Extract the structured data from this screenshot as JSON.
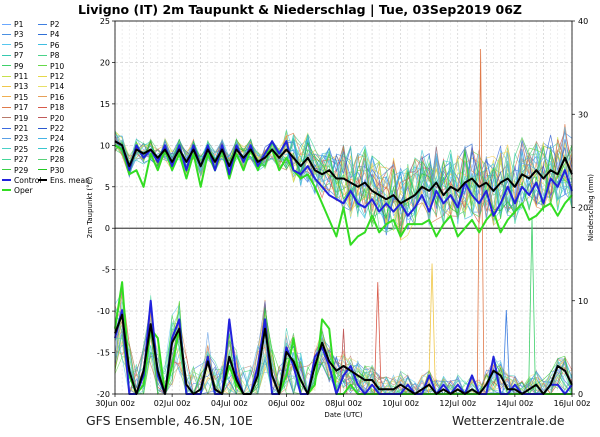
{
  "header": {
    "title": "Livigno  (IT)  2m Taupunkt & Niederschlag | Tue, 03Sep2019 06Z"
  },
  "footer": {
    "left": "GFS Ensemble, 46.5N, 10E",
    "right": "Wetterzentrale.de"
  },
  "legend": {
    "items": [
      {
        "label": "P1",
        "color": "#6aa8ff"
      },
      {
        "label": "P2",
        "color": "#3f7fe0"
      },
      {
        "label": "P3",
        "color": "#4a90e2"
      },
      {
        "label": "P4",
        "color": "#2f6fd6"
      },
      {
        "label": "P5",
        "color": "#57c7f0"
      },
      {
        "label": "P6",
        "color": "#3fbde0"
      },
      {
        "label": "P7",
        "color": "#36c9b0"
      },
      {
        "label": "P8",
        "color": "#4bd38a"
      },
      {
        "label": "P9",
        "color": "#3ed06a"
      },
      {
        "label": "P10",
        "color": "#66d94a"
      },
      {
        "label": "P11",
        "color": "#c8e04a"
      },
      {
        "label": "P12",
        "color": "#e6d84a"
      },
      {
        "label": "P13",
        "color": "#f0c84a"
      },
      {
        "label": "P14",
        "color": "#e8e06a"
      },
      {
        "label": "P15",
        "color": "#f0b050"
      },
      {
        "label": "P16",
        "color": "#e6a05a"
      },
      {
        "label": "P17",
        "color": "#e07a4a"
      },
      {
        "label": "P18",
        "color": "#d85a4a"
      },
      {
        "label": "P19",
        "color": "#b87a6a"
      },
      {
        "label": "P20",
        "color": "#c05a5a"
      },
      {
        "label": "P21",
        "color": "#3a6ae0"
      },
      {
        "label": "P22",
        "color": "#2a5ad0"
      },
      {
        "label": "P23",
        "color": "#5aa0e6"
      },
      {
        "label": "P24",
        "color": "#46b4e6"
      },
      {
        "label": "P25",
        "color": "#4ad0c8"
      },
      {
        "label": "P26",
        "color": "#3ac6d0"
      },
      {
        "label": "P27",
        "color": "#44d69a"
      },
      {
        "label": "P28",
        "color": "#5ad07a"
      },
      {
        "label": "P29",
        "color": "#3ad040"
      },
      {
        "label": "P30",
        "color": "#22c822"
      },
      {
        "label": "Control",
        "color": "#2222dd"
      },
      {
        "label": "Ens. mean",
        "color": "#000000"
      },
      {
        "label": "Oper",
        "color": "#33dd22"
      }
    ]
  },
  "chart_data": {
    "type": "line",
    "title": "Livigno  (IT)  2m Taupunkt & Niederschlag | Tue, 03Sep2019 06Z",
    "xlabel": "Date (UTC)",
    "ylabel": "2m Taupunkt (°C)",
    "y2label": "Niederschlag (mm)",
    "x_ticks": [
      "30Jun 00z",
      "02Jul 00z",
      "04Jul 00z",
      "06Jul 00z",
      "08Jul 00z",
      "10Jul 00z",
      "12Jul 00z",
      "14Jul 00z",
      "16Jul 00z"
    ],
    "x_range_days": [
      0,
      16
    ],
    "ylim": [
      -20,
      25
    ],
    "y_ticks": [
      -20,
      -15,
      -10,
      -5,
      0,
      5,
      10,
      15,
      20,
      25
    ],
    "y2lim": [
      0,
      40
    ],
    "y2_ticks": [
      0,
      10,
      20,
      30,
      40
    ],
    "grid": true,
    "legend_position": "left",
    "series": [
      {
        "name": "Ens. mean",
        "kind": "dewpoint",
        "x": [
          0,
          0.25,
          0.5,
          0.75,
          1,
          1.25,
          1.5,
          1.75,
          2,
          2.25,
          2.5,
          2.75,
          3,
          3.25,
          3.5,
          3.75,
          4,
          4.25,
          4.5,
          4.75,
          5,
          5.25,
          5.5,
          5.75,
          6,
          6.25,
          6.5,
          6.75,
          7,
          7.25,
          7.5,
          7.75,
          8,
          8.25,
          8.5,
          8.75,
          9,
          9.25,
          9.5,
          9.75,
          10,
          10.25,
          10.5,
          10.75,
          11,
          11.25,
          11.5,
          11.75,
          12,
          12.25,
          12.5,
          12.75,
          13,
          13.25,
          13.5,
          13.75,
          14,
          14.25,
          14.5,
          14.75,
          15,
          15.25,
          15.5,
          15.75,
          16
        ],
        "values": [
          10.5,
          10,
          7.5,
          9.5,
          9,
          9.5,
          8.5,
          9.5,
          8,
          9.5,
          8,
          9.5,
          7.5,
          9.5,
          8,
          9.5,
          7.5,
          9.5,
          8.5,
          9.5,
          8,
          8.5,
          9.5,
          8.5,
          9.5,
          8.5,
          7.5,
          8.5,
          7,
          6.5,
          7,
          6,
          6,
          5.5,
          5,
          5.5,
          4.5,
          4,
          3.5,
          4,
          3,
          3.5,
          4,
          5,
          4.5,
          5.5,
          4,
          5,
          4.5,
          5.5,
          6,
          5,
          5.5,
          4.5,
          5.5,
          6,
          5,
          6.5,
          6,
          7,
          6,
          7,
          6.5,
          8.5,
          6.5
        ]
      },
      {
        "name": "Control",
        "kind": "dewpoint",
        "x": [
          0,
          0.25,
          0.5,
          0.75,
          1,
          1.25,
          1.5,
          1.75,
          2,
          2.25,
          2.5,
          2.75,
          3,
          3.25,
          3.5,
          3.75,
          4,
          4.25,
          4.5,
          4.75,
          5,
          5.25,
          5.5,
          5.75,
          6,
          6.25,
          6.5,
          6.75,
          7,
          7.25,
          7.5,
          7.75,
          8,
          8.25,
          8.5,
          8.75,
          9,
          9.25,
          9.5,
          9.75,
          10,
          10.25,
          10.5,
          10.75,
          11,
          11.25,
          11.5,
          11.75,
          12,
          12.25,
          12.5,
          12.75,
          13,
          13.25,
          13.5,
          13.75,
          14,
          14.25,
          14.5,
          14.75,
          15,
          15.25,
          15.5,
          15.75,
          16
        ],
        "values": [
          10.5,
          10,
          7,
          10,
          8.5,
          9.5,
          8,
          10,
          7.5,
          10,
          7,
          10,
          7.5,
          10,
          7,
          10,
          6.5,
          10,
          8,
          10,
          7.5,
          9,
          10.5,
          9,
          10.5,
          7,
          6.5,
          7.5,
          6,
          5,
          4,
          3.5,
          3,
          4.5,
          3,
          2.5,
          3.5,
          2,
          3,
          2,
          3,
          1.5,
          2.5,
          4,
          2,
          4.5,
          3,
          4,
          2.5,
          5.5,
          4,
          3,
          4.5,
          1.5,
          3,
          5,
          3,
          5,
          4,
          5.5,
          3,
          6,
          5,
          7,
          4.5
        ]
      },
      {
        "name": "Oper",
        "kind": "dewpoint",
        "x": [
          0,
          0.25,
          0.5,
          0.75,
          1,
          1.25,
          1.5,
          1.75,
          2,
          2.25,
          2.5,
          2.75,
          3,
          3.25,
          3.5,
          3.75,
          4,
          4.25,
          4.5,
          4.75,
          5,
          5.25,
          5.5,
          5.75,
          6,
          6.25,
          6.5,
          6.75,
          7,
          7.25,
          7.5,
          7.75,
          8,
          8.25,
          8.5,
          8.75,
          9,
          9.25,
          9.5,
          9.75,
          10,
          10.25,
          10.5,
          10.75,
          11,
          11.25,
          11.5,
          11.75,
          12,
          12.25,
          12.5,
          12.75,
          13,
          13.25,
          13.5,
          13.75,
          14,
          14.25,
          14.5,
          14.75,
          15,
          15.25,
          15.5,
          15.75,
          16
        ],
        "values": [
          10,
          9.5,
          6.5,
          7,
          5,
          9,
          7,
          9.5,
          7,
          9,
          6,
          9,
          5,
          9,
          7,
          9.5,
          6,
          9,
          7,
          9.5,
          7,
          9,
          9.5,
          7,
          8.5,
          7,
          6,
          6.5,
          5,
          3,
          1,
          -1,
          2.5,
          -2,
          -1,
          -0.5,
          1.5,
          -0.5,
          0.5,
          1,
          -1,
          0.5,
          0.5,
          0.5,
          1,
          -1,
          0.5,
          1.5,
          -1,
          0,
          1,
          -0.5,
          1,
          2,
          -0.5,
          1,
          2,
          3,
          1,
          1.5,
          2.5,
          3,
          1.5,
          3,
          4
        ]
      },
      {
        "name": "Ens. mean precip",
        "kind": "precip",
        "x": [
          0,
          0.25,
          0.5,
          0.75,
          1,
          1.25,
          1.5,
          1.75,
          2,
          2.25,
          2.5,
          2.75,
          3,
          3.25,
          3.5,
          3.75,
          4,
          4.25,
          4.5,
          4.75,
          5,
          5.25,
          5.5,
          5.75,
          6,
          6.25,
          6.5,
          6.75,
          7,
          7.25,
          7.5,
          7.75,
          8,
          8.25,
          8.5,
          8.75,
          9,
          9.25,
          9.5,
          9.75,
          10,
          10.25,
          10.5,
          10.75,
          11,
          11.25,
          11.5,
          11.75,
          12,
          12.25,
          12.5,
          12.75,
          13,
          13.25,
          13.5,
          13.75,
          14,
          14.25,
          14.5,
          14.75,
          15,
          15.25,
          15.5,
          15.75,
          16
        ],
        "values": [
          6.5,
          8.5,
          2.5,
          0,
          2.5,
          7.5,
          2.5,
          0,
          5.5,
          7,
          1,
          0,
          0.5,
          3.5,
          0.5,
          0,
          4,
          1.5,
          0,
          0,
          2,
          7,
          2,
          0,
          4.5,
          3.5,
          1.5,
          0,
          3,
          5.5,
          3.5,
          2.5,
          3,
          2.5,
          2,
          1.5,
          1.5,
          0.5,
          0.5,
          0.5,
          1,
          0.5,
          0,
          0.5,
          1,
          0,
          0.5,
          0,
          0.5,
          0,
          0.5,
          0,
          1,
          2.5,
          2,
          0.5,
          0.5,
          0,
          0.5,
          1,
          0,
          1,
          3,
          2.5,
          1
        ]
      },
      {
        "name": "Control precip",
        "kind": "precip",
        "x": [
          0,
          0.25,
          0.5,
          0.75,
          1,
          1.25,
          1.5,
          1.75,
          2,
          2.25,
          2.5,
          2.75,
          3,
          3.25,
          3.5,
          3.75,
          4,
          4.25,
          4.5,
          4.75,
          5,
          5.25,
          5.5,
          5.75,
          6,
          6.25,
          6.5,
          6.75,
          7,
          7.25,
          7.5,
          7.75,
          8,
          8.25,
          8.5,
          8.75,
          9,
          9.25,
          9.5,
          9.75,
          10,
          10.25,
          10.5,
          10.75,
          11,
          11.25,
          11.5,
          11.75,
          12,
          12.25,
          12.5,
          12.75,
          13,
          13.25,
          13.5,
          13.75,
          14,
          14.25,
          14.5,
          14.75,
          15,
          15.25,
          15.5,
          15.75,
          16
        ],
        "values": [
          6,
          9,
          0,
          0,
          2,
          10,
          2,
          0,
          6,
          8,
          0,
          0,
          0,
          4,
          0,
          0,
          8,
          2,
          0,
          0,
          3,
          8,
          0,
          0,
          5,
          3,
          0,
          0,
          4,
          5,
          3,
          0,
          2,
          3,
          1,
          0,
          1,
          0,
          0,
          0,
          0,
          1,
          0,
          0,
          2,
          0,
          1,
          0,
          1,
          0,
          2,
          0,
          0,
          4,
          0,
          0,
          1,
          0,
          0,
          0,
          0,
          1,
          1,
          0,
          1
        ]
      },
      {
        "name": "Oper precip",
        "kind": "precip",
        "x": [
          0,
          0.25,
          0.5,
          0.75,
          1,
          1.25,
          1.5,
          1.75,
          2,
          2.25,
          2.5,
          2.75,
          3,
          3.25,
          3.5,
          3.75,
          4,
          4.25,
          4.5,
          4.75,
          5,
          5.25,
          5.5,
          5.75,
          6,
          6.25,
          6.5,
          6.75,
          7,
          7.25,
          7.5,
          7.75,
          8,
          8.25,
          8.5,
          8.75,
          9,
          9.25,
          9.5,
          9.75,
          10,
          10.25,
          10.5,
          10.75,
          11,
          11.25,
          11.5,
          11.75,
          12,
          12.25,
          12.5,
          12.75,
          13,
          13.25,
          13.5,
          13.75,
          14,
          14.25,
          14.5,
          14.75,
          15,
          15.25,
          15.5,
          15.75,
          16
        ],
        "values": [
          7,
          12,
          2,
          0,
          1,
          7,
          6,
          0,
          3,
          7,
          0,
          0,
          0,
          4,
          0,
          0,
          3,
          1,
          0,
          0,
          2,
          8,
          2,
          0,
          2,
          6,
          0,
          0,
          1,
          8,
          7,
          0,
          0,
          1,
          0,
          0,
          0,
          0,
          0,
          0,
          0,
          0,
          0,
          0,
          0,
          0,
          0,
          0,
          0,
          0,
          0,
          0,
          0,
          0,
          0,
          0,
          0,
          0,
          0,
          0,
          0,
          0,
          0,
          0,
          0
        ]
      }
    ]
  }
}
